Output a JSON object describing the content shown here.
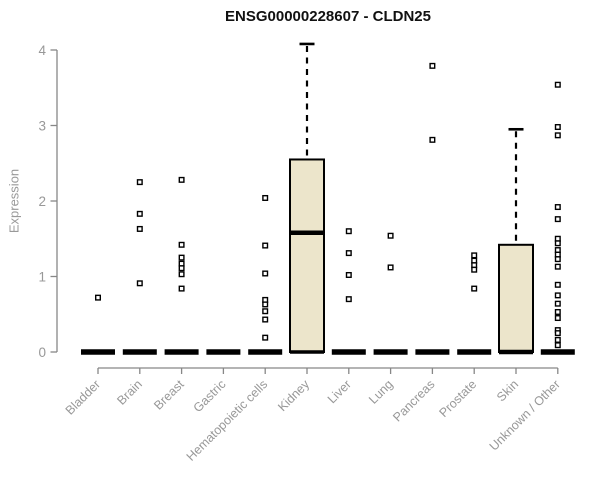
{
  "title": "ENSG00000228607 - CLDN25",
  "chart_data": {
    "type": "boxplot",
    "title": "ENSG00000228607 - CLDN25",
    "xlabel": "",
    "ylabel": "Expression",
    "ylim": [
      0,
      4
    ],
    "yticks": [
      0,
      1,
      2,
      3,
      4
    ],
    "grid": false,
    "legend": "none",
    "box_fill": "#ECE5CB",
    "box_stroke": "#000000",
    "axis_color": "#878787",
    "label_color": "#989898",
    "point_style": "open-square",
    "categories": [
      "Bladder",
      "Brain",
      "Breast",
      "Gastric",
      "Hematopoietic cells",
      "Kidney",
      "Liver",
      "Lung",
      "Pancreas",
      "Prostate",
      "Skin",
      "Unknown / Other"
    ],
    "series": [
      {
        "category": "Bladder",
        "q1": 0,
        "median": 0,
        "q3": 0,
        "whisker_low": 0,
        "whisker_high": 0,
        "points": [
          0.72
        ]
      },
      {
        "category": "Brain",
        "q1": 0,
        "median": 0,
        "q3": 0,
        "whisker_low": 0,
        "whisker_high": 0,
        "points": [
          2.25,
          1.83,
          1.63,
          0.91
        ]
      },
      {
        "category": "Breast",
        "q1": 0,
        "median": 0,
        "q3": 0,
        "whisker_low": 0,
        "whisker_high": 0,
        "points": [
          2.28,
          1.42,
          1.25,
          1.17,
          1.11,
          1.03,
          0.84
        ]
      },
      {
        "category": "Gastric",
        "q1": 0,
        "median": 0,
        "q3": 0,
        "whisker_low": 0,
        "whisker_high": 0,
        "points": []
      },
      {
        "category": "Hematopoietic cells",
        "q1": 0,
        "median": 0,
        "q3": 0,
        "whisker_low": 0,
        "whisker_high": 0,
        "points": [
          2.04,
          1.41,
          1.04,
          0.69,
          0.63,
          0.54,
          0.43,
          0.19
        ]
      },
      {
        "category": "Kidney",
        "q1": 0,
        "median": 1.58,
        "q3": 2.55,
        "whisker_low": 0,
        "whisker_high": 4.08,
        "points": []
      },
      {
        "category": "Liver",
        "q1": 0,
        "median": 0,
        "q3": 0,
        "whisker_low": 0,
        "whisker_high": 0,
        "points": [
          1.6,
          1.31,
          1.02,
          0.7
        ]
      },
      {
        "category": "Lung",
        "q1": 0,
        "median": 0,
        "q3": 0,
        "whisker_low": 0,
        "whisker_high": 0,
        "points": [
          1.54,
          1.12
        ]
      },
      {
        "category": "Pancreas",
        "q1": 0,
        "median": 0,
        "q3": 0,
        "whisker_low": 0,
        "whisker_high": 0,
        "points": [
          3.79,
          2.81
        ]
      },
      {
        "category": "Prostate",
        "q1": 0,
        "median": 0,
        "q3": 0,
        "whisker_low": 0,
        "whisker_high": 0,
        "points": [
          1.28,
          1.21,
          1.15,
          1.09,
          0.84
        ]
      },
      {
        "category": "Skin",
        "q1": 0,
        "median": 0,
        "q3": 1.42,
        "whisker_low": 0,
        "whisker_high": 2.95,
        "points": []
      },
      {
        "category": "Unknown / Other",
        "q1": 0,
        "median": 0,
        "q3": 0,
        "whisker_low": 0,
        "whisker_high": 0,
        "points": [
          3.54,
          2.98,
          2.87,
          1.92,
          1.76,
          1.5,
          1.44,
          1.35,
          1.29,
          1.23,
          1.13,
          0.89,
          0.75,
          0.64,
          0.53,
          0.45,
          0.29,
          0.25,
          0.16,
          0.09
        ]
      }
    ]
  }
}
